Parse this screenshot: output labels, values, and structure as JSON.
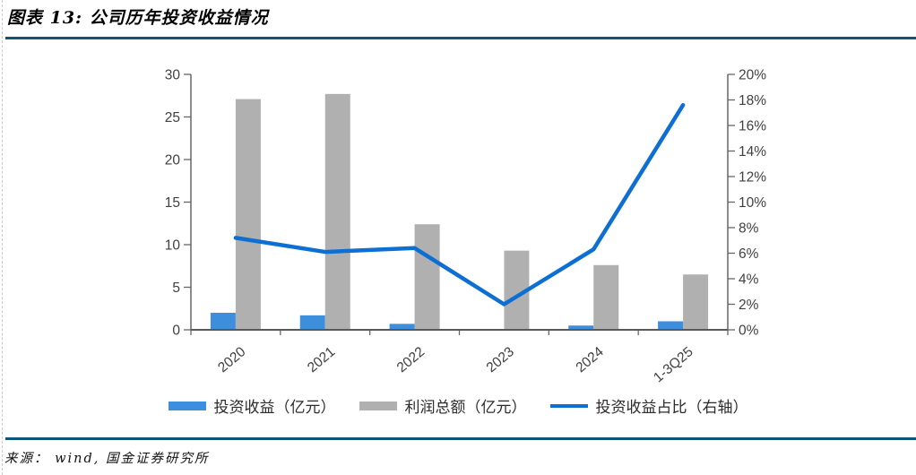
{
  "header": {
    "title": "图表 13:  公司历年投资收益情况"
  },
  "footer": {
    "source": "来源： wind,  国金证券研究所"
  },
  "page": {
    "rule_color": "#0e5679",
    "border_color": "#c9c9c9"
  },
  "legend": [
    {
      "label": "投资收益（亿元）",
      "swatch": "bar",
      "color": "#3e8ede"
    },
    {
      "label": "利润总额（亿元）",
      "swatch": "bar",
      "color": "#b0b0b0"
    },
    {
      "label": "投资收益占比（右轴）",
      "swatch": "line",
      "color": "#0d6fd2"
    }
  ],
  "chart_data": {
    "type": "combo-bar-line-dual-axis",
    "title": "公司历年投资收益情况",
    "categories": [
      "2020",
      "2021",
      "2022",
      "2023",
      "2024",
      "1-3Q25"
    ],
    "series": [
      {
        "name": "投资收益（亿元）",
        "type": "bar",
        "axis": "left",
        "color": "#3e8ede",
        "values": [
          2.0,
          1.7,
          0.7,
          0.1,
          0.5,
          1.0
        ]
      },
      {
        "name": "利润总额（亿元）",
        "type": "bar",
        "axis": "left",
        "color": "#b0b0b0",
        "values": [
          27.1,
          27.7,
          12.4,
          9.3,
          7.6,
          6.5
        ]
      },
      {
        "name": "投资收益占比（右轴）",
        "type": "line",
        "axis": "right",
        "color": "#0d6fd2",
        "unit": "%",
        "values": [
          7.2,
          6.1,
          6.4,
          2.0,
          6.3,
          17.6
        ]
      }
    ],
    "left_axis": {
      "min": 0,
      "max": 30,
      "ticks": [
        0,
        5,
        10,
        15,
        20,
        25,
        30
      ]
    },
    "right_axis": {
      "min": 0,
      "max": 20,
      "ticks": [
        0,
        2,
        4,
        6,
        8,
        10,
        12,
        14,
        16,
        18,
        20
      ],
      "suffix": "%"
    },
    "grid": false,
    "legend_position": "bottom",
    "axis_color": "#666666",
    "tick_label_color": "#404040"
  }
}
